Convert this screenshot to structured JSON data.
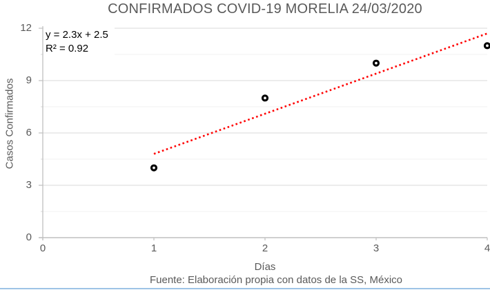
{
  "annotation": {
    "line1": "y = 2.3x + 2.5",
    "line2": "R² = 0.92"
  },
  "footer": {
    "source": "Fuente: Elaboración propia con datos de la SS, México"
  },
  "colors": {
    "text_gray": "#595959",
    "annotation_text": "#000000",
    "axis": "#bfbfbf",
    "grid_major": "#d9d9d9",
    "grid_minor": "#f2f2f2",
    "trend": "#ff0000",
    "point_stroke": "#000000",
    "point_fill": "#ffffff",
    "bottom_border": "#9dc3e6",
    "background": "#ffffff"
  },
  "chart_data": {
    "type": "scatter",
    "title": "CONFIRMADOS COVID-19 MORELIA 24/03/2020",
    "xlabel": "Días",
    "ylabel": "Casos Confirmados",
    "x": [
      1,
      2,
      3,
      4
    ],
    "y": [
      4,
      8,
      10,
      11
    ],
    "series": [
      {
        "name": "Casos Confirmados",
        "x": [
          1,
          2,
          3,
          4
        ],
        "y": [
          4,
          8,
          10,
          11
        ]
      }
    ],
    "xlim": [
      0,
      4
    ],
    "ylim": [
      0,
      12
    ],
    "x_ticks": [
      0,
      1,
      2,
      3,
      4
    ],
    "y_ticks": [
      0,
      3,
      6,
      9,
      12
    ],
    "y_minor_step": 1.5,
    "grid": "horizontal, major + minor gridlines",
    "legend": "none",
    "marker": {
      "shape": "open-circle",
      "color": "#000000"
    },
    "trendline": {
      "type": "linear",
      "slope": 2.3,
      "intercept": 2.5,
      "x_range": [
        1,
        4
      ],
      "style": "dotted",
      "color": "#ff0000",
      "equation": "y = 2.3x + 2.5",
      "r2": 0.92
    }
  }
}
